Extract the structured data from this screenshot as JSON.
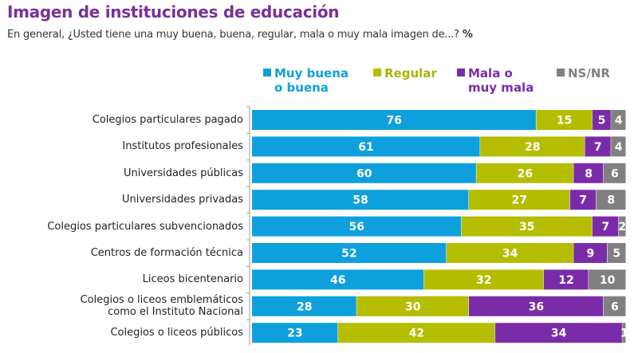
{
  "header": {
    "title": "Imagen de instituciones de educación",
    "subtitle": "En general, ¿Usted tiene una muy buena, buena, regular, mala o muy mala imagen de...?",
    "subtitle_unit": "%"
  },
  "chart_data": {
    "type": "bar",
    "orientation": "horizontal",
    "stacked": true,
    "title": "Imagen de instituciones de educación",
    "subtitle": "En general, ¿Usted tiene una muy buena, buena, regular, mala o muy mala imagen de...? %",
    "xlabel": "",
    "ylabel": "",
    "xlim": [
      0,
      100
    ],
    "grid": false,
    "legend_position": "top",
    "categories": [
      [
        "Colegios particulares pagado"
      ],
      [
        "Institutos profesionales"
      ],
      [
        "Universidades públicas"
      ],
      [
        "Universidades privadas"
      ],
      [
        "Colegios particulares subvencionados"
      ],
      [
        "Centros de formación técnica"
      ],
      [
        "Liceos bicentenario"
      ],
      [
        "Colegios o liceos emblemáticos",
        "como el Instituto Nacional"
      ],
      [
        "Colegios o liceos públicos"
      ]
    ],
    "series": [
      {
        "name": "Muy buena o buena",
        "legend_lines": [
          "Muy buena",
          "o buena"
        ],
        "color": "#0ea0dc",
        "values": [
          76,
          61,
          60,
          58,
          56,
          52,
          46,
          28,
          23
        ]
      },
      {
        "name": "Regular",
        "legend_lines": [
          "Regular"
        ],
        "color": "#b5bd00",
        "values": [
          15,
          28,
          26,
          27,
          35,
          34,
          32,
          30,
          42
        ]
      },
      {
        "name": "Mala o muy mala",
        "legend_lines": [
          "Mala o",
          "muy mala"
        ],
        "color": "#7a2ca8",
        "values": [
          5,
          7,
          8,
          7,
          7,
          9,
          12,
          36,
          34
        ]
      },
      {
        "name": "NS/NR",
        "legend_lines": [
          "NS/NR"
        ],
        "color": "#808080",
        "values": [
          4,
          4,
          6,
          8,
          2,
          5,
          10,
          6,
          1
        ]
      }
    ]
  }
}
